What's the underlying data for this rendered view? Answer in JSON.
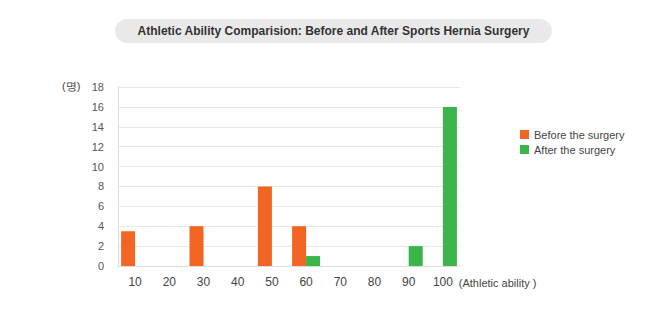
{
  "chart_data": {
    "type": "bar",
    "title": "Athletic Ability Comparision: Before and After Sports Hernia Surgery",
    "y_label": "(명)",
    "x_label": "(Athletic ability )",
    "categories": [
      "10",
      "20",
      "30",
      "40",
      "50",
      "60",
      "70",
      "80",
      "90",
      "100"
    ],
    "series": [
      {
        "name": "Before the surgery",
        "color": "#f26522",
        "values": [
          3.5,
          0,
          4,
          0,
          8,
          4,
          0,
          0,
          0,
          0
        ]
      },
      {
        "name": "After the surgery",
        "color": "#39b54a",
        "values": [
          0,
          0,
          0,
          0,
          0,
          1,
          0,
          0,
          2,
          16
        ]
      }
    ],
    "ylim": [
      0,
      18
    ],
    "yticks": [
      0,
      2,
      4,
      6,
      8,
      10,
      12,
      14,
      16,
      18
    ],
    "grid": true,
    "legend": "right"
  }
}
